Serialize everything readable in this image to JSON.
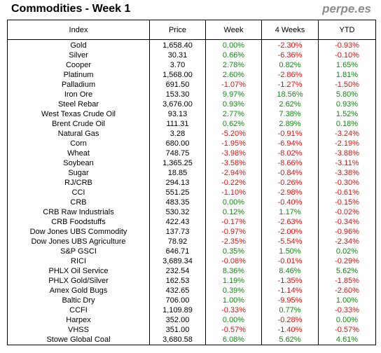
{
  "header": {
    "title": "Commodities - Week 1",
    "brand": "perpe.es"
  },
  "colors": {
    "positive": "#118a11",
    "negative": "#e2100c"
  },
  "table": {
    "columns": [
      "Index",
      "Price",
      "Week",
      "4 Weeks",
      "YTD"
    ],
    "rows": [
      [
        "Gold",
        "1,658.40",
        "0.00%",
        "-2.30%",
        "-0.93%"
      ],
      [
        "Silver",
        "30.31",
        "0.66%",
        "-6.36%",
        "-0.10%"
      ],
      [
        "Cooper",
        "3.70",
        "2.78%",
        "0.82%",
        "1.65%"
      ],
      [
        "Platinum",
        "1,568.00",
        "2.60%",
        "-2.86%",
        "1.81%"
      ],
      [
        "Palladium",
        "691.50",
        "-1.07%",
        "-1.27%",
        "-1.50%"
      ],
      [
        "Iron Ore",
        "153.30",
        "9.97%",
        "18.56%",
        "5.80%"
      ],
      [
        "Steel Rebar",
        "3,676.00",
        "0.93%",
        "2.62%",
        "0.93%"
      ],
      [
        "West Texas Crude Oil",
        "93.13",
        "2.77%",
        "7.38%",
        "1.52%"
      ],
      [
        "Brent Crude Oil",
        "111.31",
        "0.62%",
        "2.89%",
        "0.18%"
      ],
      [
        "Natural Gas",
        "3.28",
        "-5.20%",
        "-0.91%",
        "-3.24%"
      ],
      [
        "Corn",
        "680.00",
        "-1.95%",
        "-6.94%",
        "-2.19%"
      ],
      [
        "Wheat",
        "748.75",
        "-3.98%",
        "-8.02%",
        "-3.88%"
      ],
      [
        "Soybean",
        "1,365.25",
        "-3.58%",
        "-8.66%",
        "-3.11%"
      ],
      [
        "Sugar",
        "18.85",
        "-2.94%",
        "-0.84%",
        "-3.38%"
      ],
      [
        "RJ/CRB",
        "294.13",
        "-0.22%",
        "-0.26%",
        "-0.30%"
      ],
      [
        "CCI",
        "551.25",
        "-1.10%",
        "-2.98%",
        "-0.61%"
      ],
      [
        "CRB",
        "483.35",
        "0.00%",
        "-0.40%",
        "-0.15%"
      ],
      [
        "CRB Raw Industrials",
        "530.32",
        "0.12%",
        "1.17%",
        "-0.02%"
      ],
      [
        "CRB Foodstuffs",
        "422.43",
        "-0.17%",
        "-2.63%",
        "-0.34%"
      ],
      [
        "Dow Jones UBS Commodity",
        "137.73",
        "-0.97%",
        "-2.00%",
        "-0.96%"
      ],
      [
        "Dow Jones UBS Agriculture",
        "78.92",
        "-2.35%",
        "-5.54%",
        "-2.34%"
      ],
      [
        "S&P GSCI",
        "646.71",
        "0.35%",
        "1.50%",
        "0.02%"
      ],
      [
        "RICI",
        "3,689.34",
        "-0.08%",
        "-0.01%",
        "-0.29%"
      ],
      [
        "PHLX Oil Service",
        "232.54",
        "8.36%",
        "8.46%",
        "5.62%"
      ],
      [
        "PHLX Gold/Silver",
        "162.53",
        "1.19%",
        "-1.35%",
        "-1.85%"
      ],
      [
        "Amex Gold Bugs",
        "432.65",
        "0.39%",
        "-1.14%",
        "-2.60%"
      ],
      [
        "Baltic Dry",
        "706.00",
        "1.00%",
        "-9.95%",
        "1.00%"
      ],
      [
        "CCFI",
        "1,109.89",
        "-0.33%",
        "0.77%",
        "-0.33%"
      ],
      [
        "Harpex",
        "352.00",
        "0.00%",
        "-0.28%",
        "0.00%"
      ],
      [
        "VHSS",
        "351.00",
        "-0.57%",
        "-1.40%",
        "-0.57%"
      ],
      [
        "Stowe Global Coal",
        "3,680.58",
        "6.08%",
        "5.62%",
        "4.61%"
      ]
    ]
  }
}
